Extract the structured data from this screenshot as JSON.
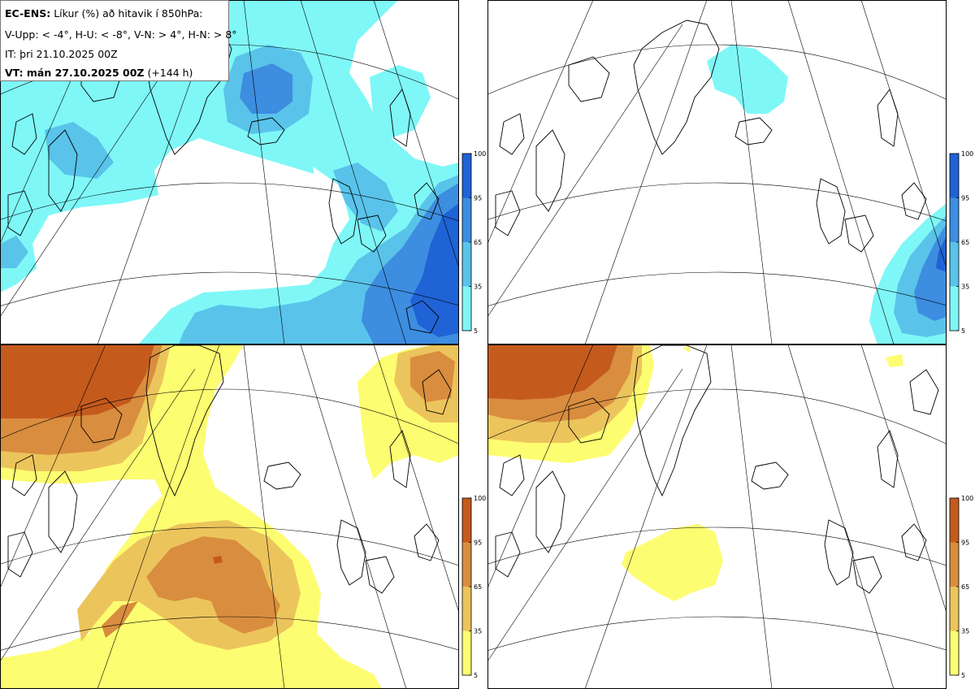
{
  "header": {
    "model": "EC-ENS:",
    "title": "Líkur (%) að hitavik í 850hPa:",
    "thresholds": "V-Upp: < -4°, H-U: < -8°, V-N: > 4°, H-N: > 8°",
    "initial_time": "IT: þri 21.10.2025 00Z",
    "valid_time_label": "VT: mán 27.10.2025 00Z",
    "lead_time": "(+144 h)"
  },
  "panels": [
    {
      "id": "V-Upp",
      "scale": "cold",
      "description": "< -4°"
    },
    {
      "id": "H-U",
      "scale": "cold",
      "description": "< -8°"
    },
    {
      "id": "V-N",
      "scale": "warm",
      "description": "> 4°"
    },
    {
      "id": "H-N",
      "scale": "warm",
      "description": "> 8°"
    }
  ],
  "colorbar": {
    "ticks": [
      "100",
      "95",
      "65",
      "35",
      "5"
    ],
    "cold_colors": [
      "#1f63d6",
      "#3d8de0",
      "#59c3ea",
      "#7ff7f7"
    ],
    "warm_colors": [
      "#c55a1d",
      "#d98d3e",
      "#ecc45c",
      "#fdfd71"
    ]
  }
}
